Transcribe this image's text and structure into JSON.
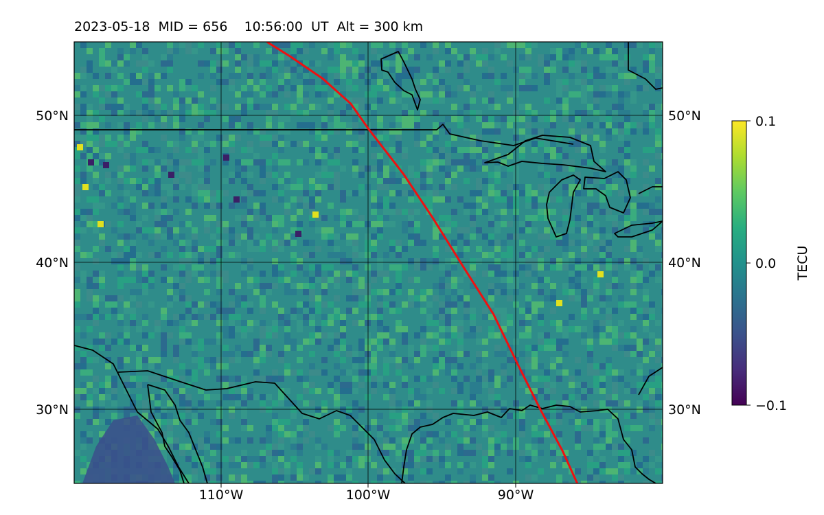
{
  "title": {
    "date": "2023-05-18",
    "mid": "MID = 656",
    "time": "10:56:00  UT",
    "alt": "Alt = 300 km"
  },
  "map": {
    "region": "central and eastern North America",
    "lon_range": [
      -120,
      -80
    ],
    "lat_range": [
      25,
      55
    ],
    "gridlines": true,
    "lon_ticks": [
      "110°W",
      "100°W",
      "90°W"
    ],
    "lat_ticks_left": [
      "50°N",
      "40°N",
      "30°N"
    ],
    "lat_ticks_right": [
      "50°N",
      "40°N",
      "30°N"
    ],
    "features": [
      "coastlines",
      "us-canada-border",
      "great-lakes",
      "mexico-coast",
      "gulf-of-mexico"
    ],
    "track": {
      "label": "",
      "color": "#ee1111",
      "points": [
        [
          -106.9,
          55
        ],
        [
          -105.3,
          54
        ],
        [
          -103.1,
          52.5
        ],
        [
          -101.2,
          50.8
        ],
        [
          -100,
          49.1
        ],
        [
          -97.6,
          46
        ],
        [
          -95.6,
          43
        ],
        [
          -93.6,
          39.8
        ],
        [
          -91.5,
          36.5
        ],
        [
          -89.8,
          33
        ],
        [
          -88.3,
          30
        ],
        [
          -86.8,
          27.2
        ],
        [
          -85.8,
          25
        ]
      ]
    },
    "colors": {
      "background_field": "#2f8c8a",
      "land_outline": "#000000",
      "track": "#ee1111"
    }
  },
  "colorbar": {
    "label": "TECU",
    "ticks": [
      "0.1",
      "0.0",
      "−0.1"
    ],
    "range": [
      -0.1,
      0.1
    ],
    "colormap": "viridis"
  }
}
